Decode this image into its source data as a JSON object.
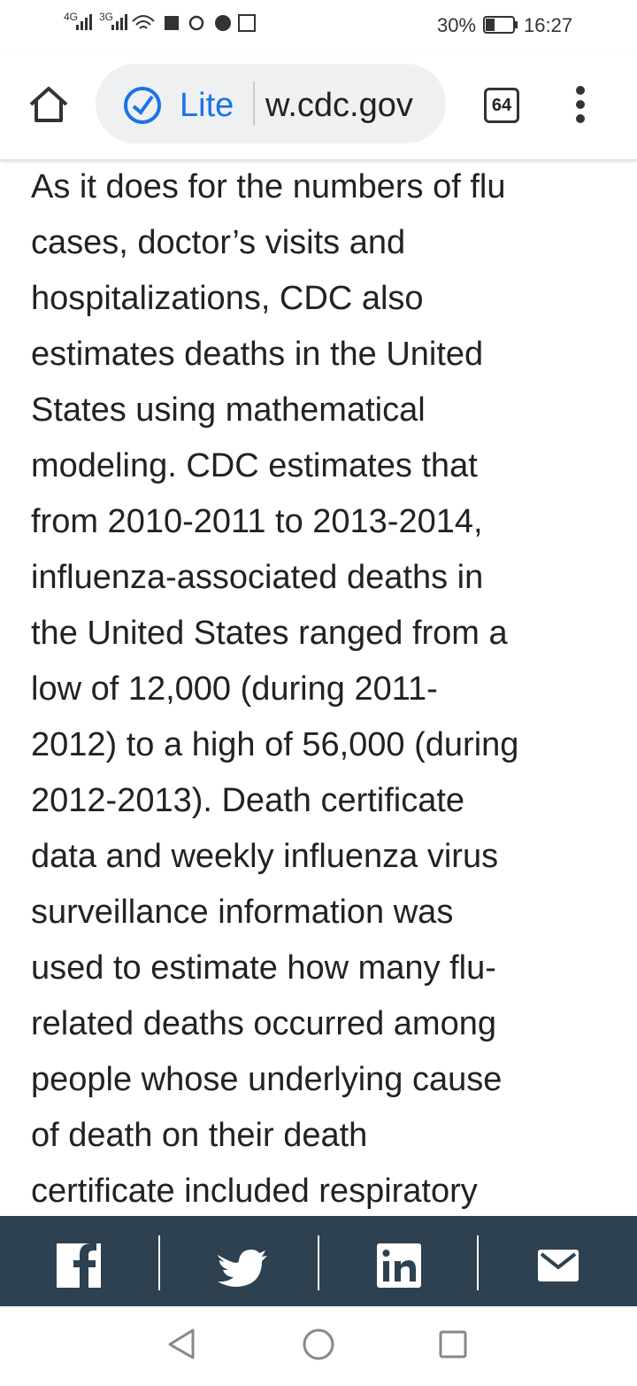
{
  "status_bar": {
    "network_1": "4G",
    "network_2": "3G",
    "battery": "30%",
    "time": "16:27"
  },
  "browser_bar": {
    "mode": "Lite",
    "url": "w.cdc.gov",
    "tab_count": "64"
  },
  "article": {
    "lines": [
      "As it does for the numbers of flu",
      "cases, doctor’s visits and",
      "hospitalizations, CDC also",
      "estimates deaths in the United",
      "States using mathematical",
      "modeling. CDC estimates that",
      "from 2010-2011 to 2013-2014,",
      "influenza-associated deaths in",
      "the United States ranged from a",
      "low of 12,000 (during 2011-",
      "2012) to a high of 56,000 (during",
      "2012-2013). Death certificate",
      "data and weekly influenza virus",
      "surveillance information was",
      "used to estimate how many flu-",
      "related deaths occurred among",
      "people whose underlying cause",
      "of death on their death",
      "certificate included respiratory"
    ]
  }
}
